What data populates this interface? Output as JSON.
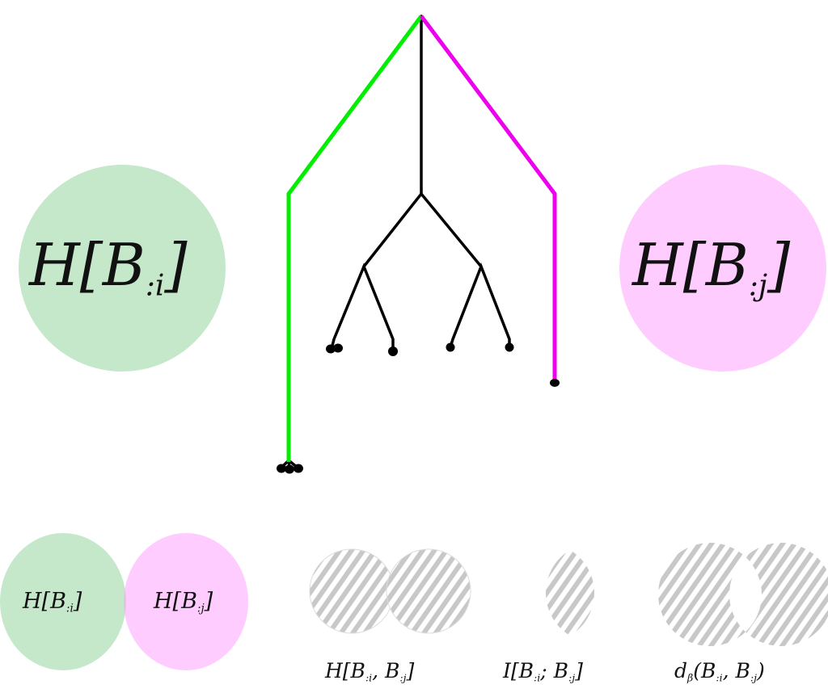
{
  "colors": {
    "green_line": "#00ee00",
    "magenta_line": "#ee00ee",
    "green_fill": "#c5e8cb",
    "pink_fill": "#ffccff",
    "hatch": "#c8c8c8",
    "tree": "#000000"
  },
  "big_left": {
    "pre": "H[B",
    "sub": ":i",
    "post": "]"
  },
  "big_right": {
    "pre": "H[B",
    "sub": ":j",
    "post": "]"
  },
  "venn_left": {
    "pre": "H[B",
    "sub": ":i",
    "post": "]"
  },
  "venn_right": {
    "pre": "H[B",
    "sub": ":j",
    "post": "]"
  },
  "joint": {
    "a": "H[B",
    "s1": ":i",
    "b": ", B",
    "s2": ":j",
    "c": "]"
  },
  "mutual": {
    "a": "I[B",
    "s1": ":i",
    "b": "; B",
    "s2": ":j",
    "c": "]"
  },
  "distance": {
    "a": "d",
    "s0": "β",
    "a2": "(B",
    "s1": ":i",
    "b": ", B",
    "s2": ":j",
    "c": ")"
  }
}
